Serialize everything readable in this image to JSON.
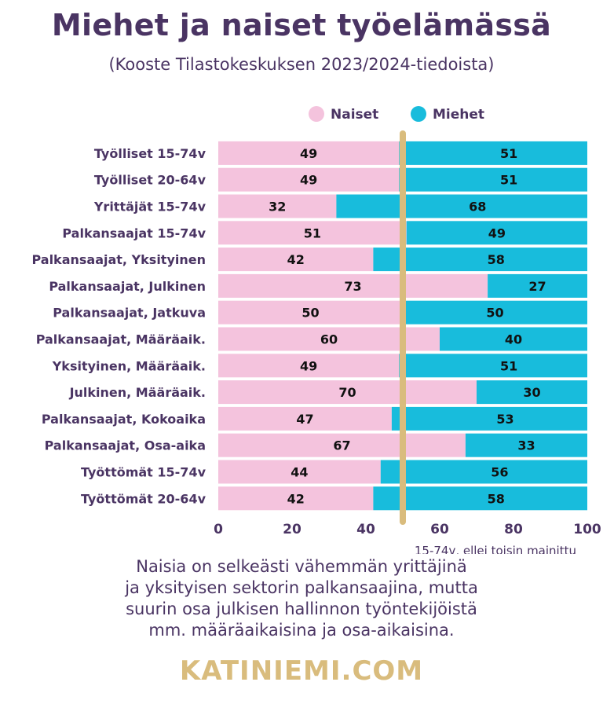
{
  "title": "Miehet ja naiset työelämässä",
  "subtitle": "(Kooste Tilastokeskuksen 2023/2024-tiedoista)",
  "note": "15-74v, ellei toisin mainittu",
  "footnote": [
    "Naisia on selkeästi vähemmän yrittäjinä",
    "ja yksityisen sektorin palkansaajina, mutta",
    "suurin osa julkisen hallinnon työntekijöistä",
    "mm. määräaikaisina ja osa-aikaisina."
  ],
  "brand": "KATINIEMI.COM",
  "colors": {
    "naiset": "#f4c3dd",
    "miehet": "#18bcdc",
    "midline": "#d9bc7d",
    "text": "#4a3463"
  },
  "chart_data": {
    "type": "bar",
    "orientation": "horizontal-stacked-100",
    "categories": [
      "Työlliset 15-74v",
      "Työlliset 20-64v",
      "Yrittäjät 15-74v",
      "Palkansaajat 15-74v",
      "Palkansaajat, Yksityinen",
      "Palkansaajat, Julkinen",
      "Palkansaajat, Jatkuva",
      "Palkansaajat, Määräaik.",
      "Yksityinen, Määräaik.",
      "Julkinen, Määräaik.",
      "Palkansaajat, Kokoaika",
      "Palkansaajat, Osa-aika",
      "Työttömät 15-74v",
      "Työttömät 20-64v"
    ],
    "series": [
      {
        "name": "Naiset",
        "values": [
          49,
          49,
          32,
          51,
          42,
          73,
          50,
          60,
          49,
          70,
          47,
          67,
          44,
          42
        ]
      },
      {
        "name": "Miehet",
        "values": [
          51,
          51,
          68,
          49,
          58,
          27,
          50,
          40,
          51,
          30,
          53,
          33,
          56,
          58
        ]
      }
    ],
    "xlim": [
      0,
      100
    ],
    "xticks": [
      0,
      20,
      40,
      60,
      80,
      100
    ],
    "reference_line": 50,
    "legend": "top-right"
  }
}
